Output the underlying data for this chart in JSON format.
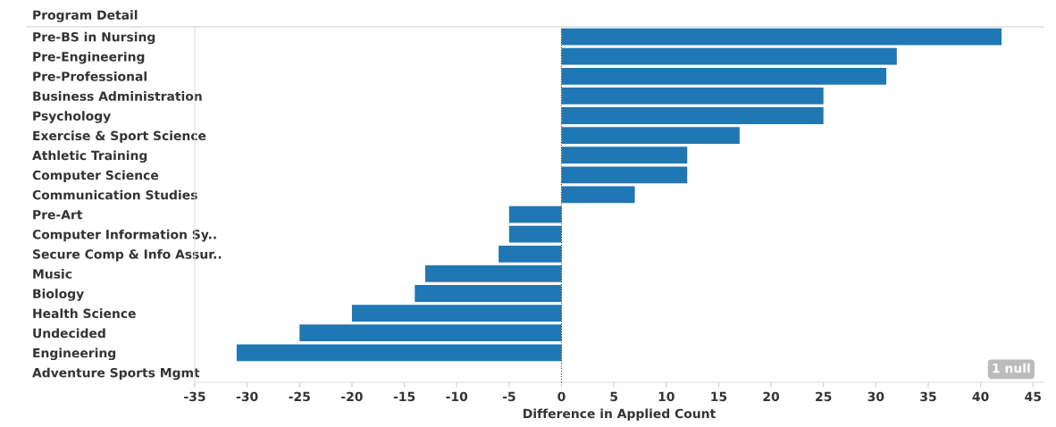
{
  "chart_data": {
    "type": "bar",
    "orientation": "horizontal",
    "ylabel": "Program Detail",
    "xlabel": "Difference in Applied Count",
    "categories": [
      "Pre-BS in Nursing",
      "Pre-Engineering",
      "Pre-Professional",
      "Business Administration",
      "Psychology",
      "Exercise & Sport Science",
      "Athletic Training",
      "Computer Science",
      "Communication Studies",
      "Pre-Art",
      "Computer Information Sy..",
      "Secure Comp & Info Assur..",
      "Music",
      "Biology",
      "Health Science",
      "Undecided",
      "Engineering",
      "Adventure Sports Mgmt"
    ],
    "values": [
      42,
      32,
      31,
      25,
      25,
      17,
      12,
      12,
      7,
      -5,
      -5,
      -6,
      -13,
      -14,
      -20,
      -25,
      -31,
      null
    ],
    "color": "#1f77b4",
    "xlim": [
      -35,
      46
    ],
    "xticks": [
      -35,
      -30,
      -25,
      -20,
      -15,
      -10,
      -5,
      0,
      5,
      10,
      15,
      20,
      25,
      30,
      35,
      40,
      45
    ],
    "ref_lines": [
      {
        "axis": "x",
        "value": 0,
        "line_style": "dotted",
        "color": "#333333"
      }
    ],
    "annotations": [
      "1 null"
    ],
    "grid": false,
    "legend": false
  }
}
